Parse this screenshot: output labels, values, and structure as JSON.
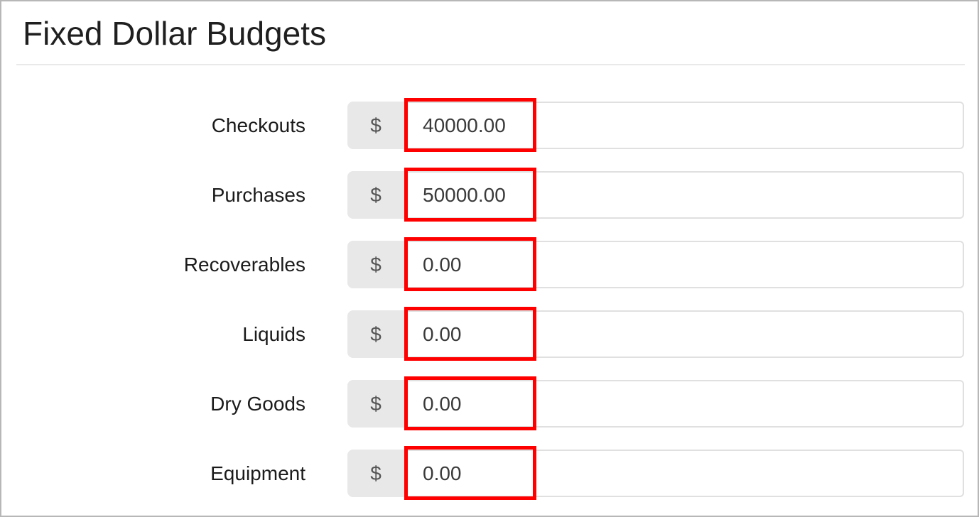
{
  "page": {
    "title": "Fixed Dollar Budgets"
  },
  "form": {
    "currency_symbol": "$",
    "rows": [
      {
        "id": "checkouts",
        "label": "Checkouts",
        "value": "40000.00",
        "highlighted": true
      },
      {
        "id": "purchases",
        "label": "Purchases",
        "value": "50000.00",
        "highlighted": true
      },
      {
        "id": "recoverables",
        "label": "Recoverables",
        "value": "0.00",
        "highlighted": true
      },
      {
        "id": "liquids",
        "label": "Liquids",
        "value": "0.00",
        "highlighted": true
      },
      {
        "id": "dry-goods",
        "label": "Dry Goods",
        "value": "0.00",
        "highlighted": true
      },
      {
        "id": "equipment",
        "label": "Equipment",
        "value": "0.00",
        "highlighted": true
      }
    ]
  },
  "annotation": {
    "highlight_color": "#ff0000"
  }
}
